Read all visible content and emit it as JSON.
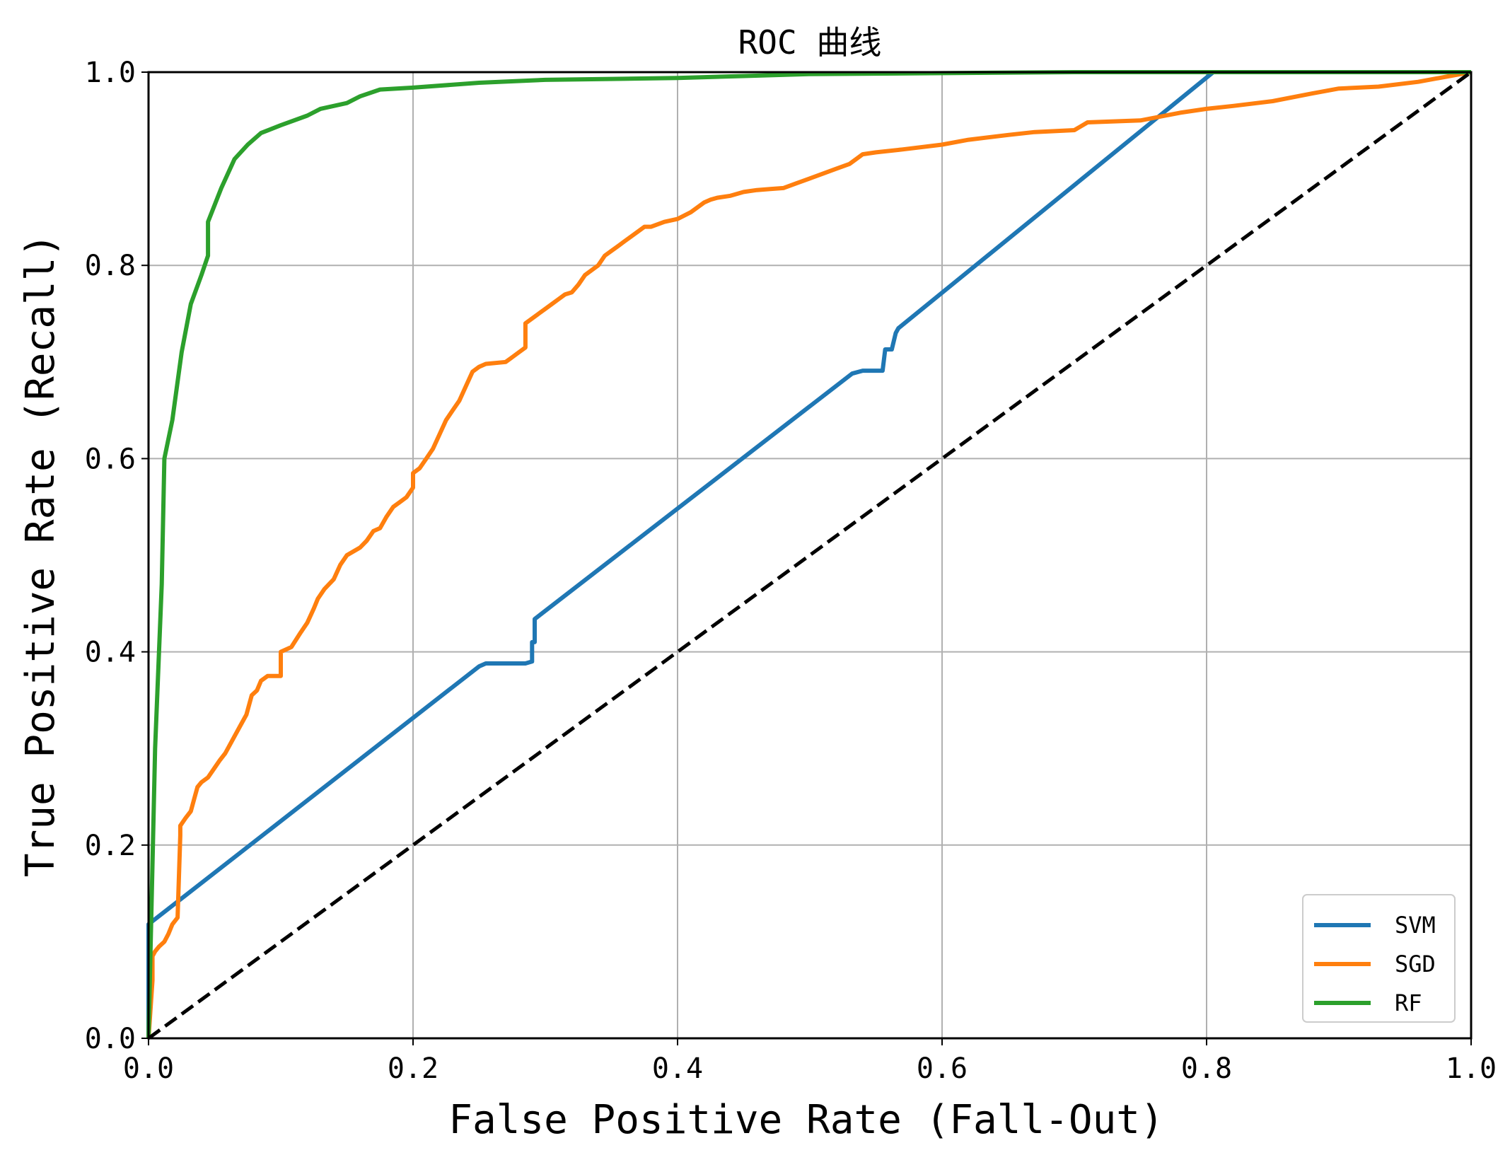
{
  "chart_data": {
    "type": "line",
    "title": "ROC 曲线",
    "xlabel": "False Positive Rate (Fall-Out)",
    "ylabel": "True Positive Rate (Recall)",
    "xlim": [
      0.0,
      1.0
    ],
    "ylim": [
      0.0,
      1.0
    ],
    "xticks": [
      0.0,
      0.2,
      0.4,
      0.6,
      0.8,
      1.0
    ],
    "yticks": [
      0.0,
      0.2,
      0.4,
      0.6,
      0.8,
      1.0
    ],
    "xtick_labels": [
      "0.0",
      "0.2",
      "0.4",
      "0.6",
      "0.8",
      "1.0"
    ],
    "ytick_labels": [
      "0.0",
      "0.2",
      "0.4",
      "0.6",
      "0.8",
      "1.0"
    ],
    "grid": true,
    "legend_position": "lower-right",
    "series": [
      {
        "name": "SVM",
        "color": "#1f77b4",
        "x": [
          0.0,
          0.0,
          0.0,
          0.25,
          0.255,
          0.285,
          0.29,
          0.29,
          0.292,
          0.292,
          0.532,
          0.54,
          0.555,
          0.557,
          0.562,
          0.565,
          0.567,
          0.805,
          1.0
        ],
        "y": [
          0.0,
          0.06,
          0.118,
          0.385,
          0.388,
          0.388,
          0.39,
          0.41,
          0.41,
          0.434,
          0.688,
          0.691,
          0.691,
          0.713,
          0.713,
          0.73,
          0.735,
          1.0,
          1.0
        ]
      },
      {
        "name": "SGD",
        "color": "#ff7f0e",
        "x": [
          0.0,
          0.003,
          0.003,
          0.005,
          0.008,
          0.012,
          0.015,
          0.018,
          0.022,
          0.024,
          0.024,
          0.028,
          0.032,
          0.035,
          0.037,
          0.04,
          0.045,
          0.05,
          0.054,
          0.058,
          0.062,
          0.066,
          0.07,
          0.074,
          0.078,
          0.082,
          0.085,
          0.09,
          0.1,
          0.1,
          0.108,
          0.115,
          0.12,
          0.125,
          0.128,
          0.133,
          0.14,
          0.145,
          0.15,
          0.16,
          0.165,
          0.17,
          0.175,
          0.18,
          0.185,
          0.19,
          0.195,
          0.2,
          0.2,
          0.205,
          0.21,
          0.215,
          0.22,
          0.225,
          0.23,
          0.235,
          0.24,
          0.245,
          0.25,
          0.255,
          0.27,
          0.275,
          0.28,
          0.285,
          0.285,
          0.295,
          0.3,
          0.305,
          0.31,
          0.315,
          0.32,
          0.325,
          0.33,
          0.34,
          0.345,
          0.35,
          0.355,
          0.36,
          0.37,
          0.375,
          0.38,
          0.39,
          0.4,
          0.41,
          0.42,
          0.425,
          0.43,
          0.44,
          0.45,
          0.46,
          0.47,
          0.48,
          0.49,
          0.5,
          0.51,
          0.52,
          0.53,
          0.535,
          0.54,
          0.55,
          0.57,
          0.6,
          0.62,
          0.65,
          0.67,
          0.7,
          0.71,
          0.75,
          0.78,
          0.8,
          0.82,
          0.85,
          0.88,
          0.9,
          0.93,
          0.96,
          1.0
        ],
        "y": [
          0.0,
          0.06,
          0.085,
          0.09,
          0.095,
          0.1,
          0.108,
          0.118,
          0.125,
          0.21,
          0.22,
          0.228,
          0.235,
          0.25,
          0.26,
          0.265,
          0.27,
          0.28,
          0.288,
          0.295,
          0.305,
          0.315,
          0.325,
          0.335,
          0.355,
          0.36,
          0.37,
          0.375,
          0.375,
          0.4,
          0.405,
          0.42,
          0.43,
          0.445,
          0.455,
          0.465,
          0.475,
          0.49,
          0.5,
          0.508,
          0.515,
          0.525,
          0.528,
          0.54,
          0.55,
          0.555,
          0.56,
          0.57,
          0.585,
          0.59,
          0.6,
          0.61,
          0.625,
          0.64,
          0.65,
          0.66,
          0.675,
          0.69,
          0.695,
          0.698,
          0.7,
          0.705,
          0.71,
          0.715,
          0.74,
          0.75,
          0.755,
          0.76,
          0.765,
          0.77,
          0.772,
          0.78,
          0.79,
          0.8,
          0.81,
          0.815,
          0.82,
          0.825,
          0.835,
          0.84,
          0.84,
          0.845,
          0.848,
          0.855,
          0.865,
          0.868,
          0.87,
          0.872,
          0.876,
          0.878,
          0.879,
          0.88,
          0.885,
          0.89,
          0.895,
          0.9,
          0.905,
          0.91,
          0.915,
          0.917,
          0.92,
          0.925,
          0.93,
          0.935,
          0.938,
          0.94,
          0.948,
          0.95,
          0.958,
          0.962,
          0.965,
          0.97,
          0.978,
          0.983,
          0.985,
          0.99,
          1.0
        ]
      },
      {
        "name": "RF",
        "color": "#2ca02c",
        "x": [
          0.0,
          0.005,
          0.01,
          0.012,
          0.018,
          0.025,
          0.032,
          0.04,
          0.045,
          0.045,
          0.055,
          0.065,
          0.075,
          0.085,
          0.1,
          0.12,
          0.13,
          0.15,
          0.16,
          0.175,
          0.2,
          0.25,
          0.3,
          0.35,
          0.4,
          0.45,
          0.5,
          0.6,
          0.7,
          0.8,
          1.0
        ],
        "y": [
          0.0,
          0.3,
          0.47,
          0.6,
          0.64,
          0.71,
          0.76,
          0.79,
          0.81,
          0.845,
          0.88,
          0.91,
          0.925,
          0.937,
          0.945,
          0.955,
          0.962,
          0.968,
          0.975,
          0.982,
          0.984,
          0.989,
          0.992,
          0.993,
          0.994,
          0.996,
          0.998,
          0.999,
          1.0,
          1.0,
          1.0
        ]
      }
    ],
    "reference_line": {
      "x": [
        0.0,
        1.0
      ],
      "y": [
        0.0,
        1.0
      ],
      "color": "#000000",
      "style": "dashed"
    }
  }
}
